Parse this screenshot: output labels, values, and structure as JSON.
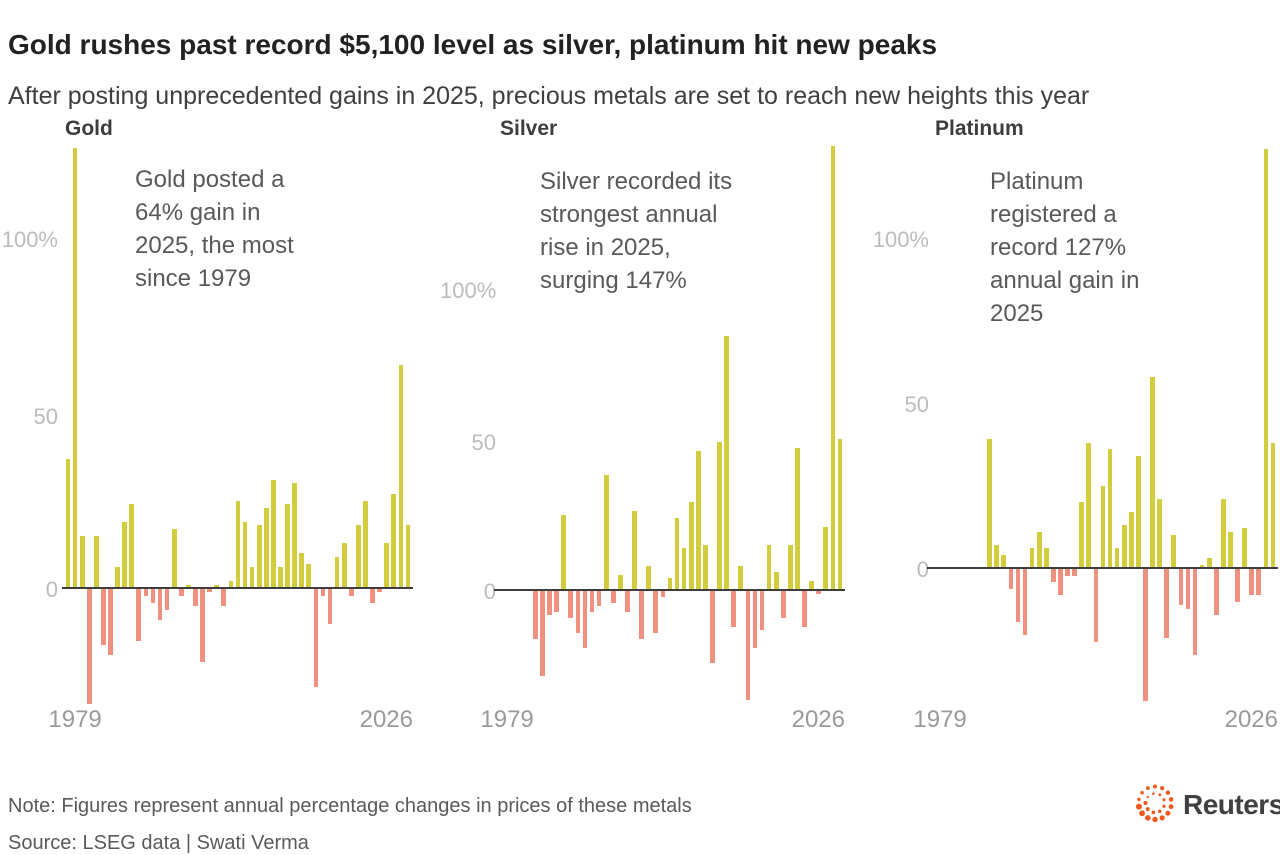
{
  "header": {
    "title": "Gold rushes past record $5,100 level as silver, platinum hit new peaks",
    "subtitle": "After posting unprecedented gains in 2025, precious metals are set to reach new heights this year"
  },
  "footer": {
    "note": "Note: Figures represent annual percentage changes in prices of these metals",
    "source": "Source: LSEG data | Swati Verma",
    "logo_text": "Reuters"
  },
  "colors": {
    "positive_bar": "#d2cc3f",
    "negative_bar": "#f0907e",
    "axis_line": "#3e3e3e",
    "logo_orange": "#f1591d"
  },
  "chart_data": [
    {
      "type": "bar",
      "title": "Gold",
      "annotation": "Gold posted a\n64% gain in\n2025, the most\nsince 1979",
      "x_start_year": 1978,
      "x_end_year": 2026,
      "xtick_labels": [
        "1979",
        "2026"
      ],
      "yticks": [
        {
          "label": "100%",
          "value": 100
        },
        {
          "label": "50",
          "value": 50
        },
        {
          "label": "0",
          "value": 0
        }
      ],
      "ylim": [
        -33,
        126
      ],
      "grid": false,
      "values": [
        37,
        126,
        15,
        -33,
        15,
        -16,
        -19,
        6,
        19,
        24,
        -15,
        -2,
        -4,
        -9,
        -6,
        17,
        -2,
        1,
        -5,
        -21,
        -1,
        1,
        -5,
        2,
        25,
        19,
        6,
        18,
        23,
        31,
        6,
        24,
        30,
        10,
        7,
        -28,
        -2,
        -10,
        9,
        13,
        -2,
        18,
        25,
        -4,
        -1,
        13,
        27,
        64,
        18
      ]
    },
    {
      "type": "bar",
      "title": "Silver",
      "annotation": "Silver recorded its\nstrongest annual\nrise in 2025,\nsurging 147%",
      "x_start_year": 1978,
      "x_end_year": 2026,
      "xtick_labels": [
        "1979",
        "2026"
      ],
      "yticks": [
        {
          "label": "100%",
          "value": 100
        },
        {
          "label": "50",
          "value": 50
        },
        {
          "label": "0",
          "value": 0
        }
      ],
      "ylim": [
        -36,
        147
      ],
      "grid": false,
      "values": [
        null,
        null,
        null,
        null,
        null,
        -16,
        -28,
        -8,
        -7,
        25,
        -9,
        -14,
        -19,
        -7,
        -5,
        38,
        -4,
        5,
        -7,
        26,
        -16,
        8,
        -14,
        -2,
        4,
        24,
        14,
        29,
        46,
        15,
        -24,
        49,
        84,
        -12,
        8,
        -36,
        -19,
        -13,
        15,
        6,
        -9,
        15,
        47,
        -12,
        3,
        -1,
        21,
        147,
        50
      ]
    },
    {
      "type": "bar",
      "title": "Platinum",
      "annotation": "Platinum\nregistered a\nrecord 127%\nannual gain in\n2025",
      "x_start_year": 1978,
      "x_end_year": 2026,
      "xtick_labels": [
        "1979",
        "2026"
      ],
      "yticks": [
        {
          "label": "100%",
          "value": 100
        },
        {
          "label": "50",
          "value": 50
        },
        {
          "label": "0",
          "value": 0
        }
      ],
      "ylim": [
        -40,
        127
      ],
      "grid": false,
      "values": [
        null,
        null,
        null,
        null,
        null,
        null,
        null,
        null,
        39,
        7,
        4,
        -6,
        -16,
        -20,
        6,
        11,
        6,
        -4,
        -8,
        -2,
        -2,
        20,
        38,
        -22,
        25,
        36,
        6,
        13,
        17,
        34,
        -40,
        58,
        21,
        -21,
        10,
        -11,
        -12,
        -26,
        1,
        3,
        -14,
        21,
        11,
        -10,
        12,
        -8,
        -8,
        127,
        38
      ]
    }
  ]
}
